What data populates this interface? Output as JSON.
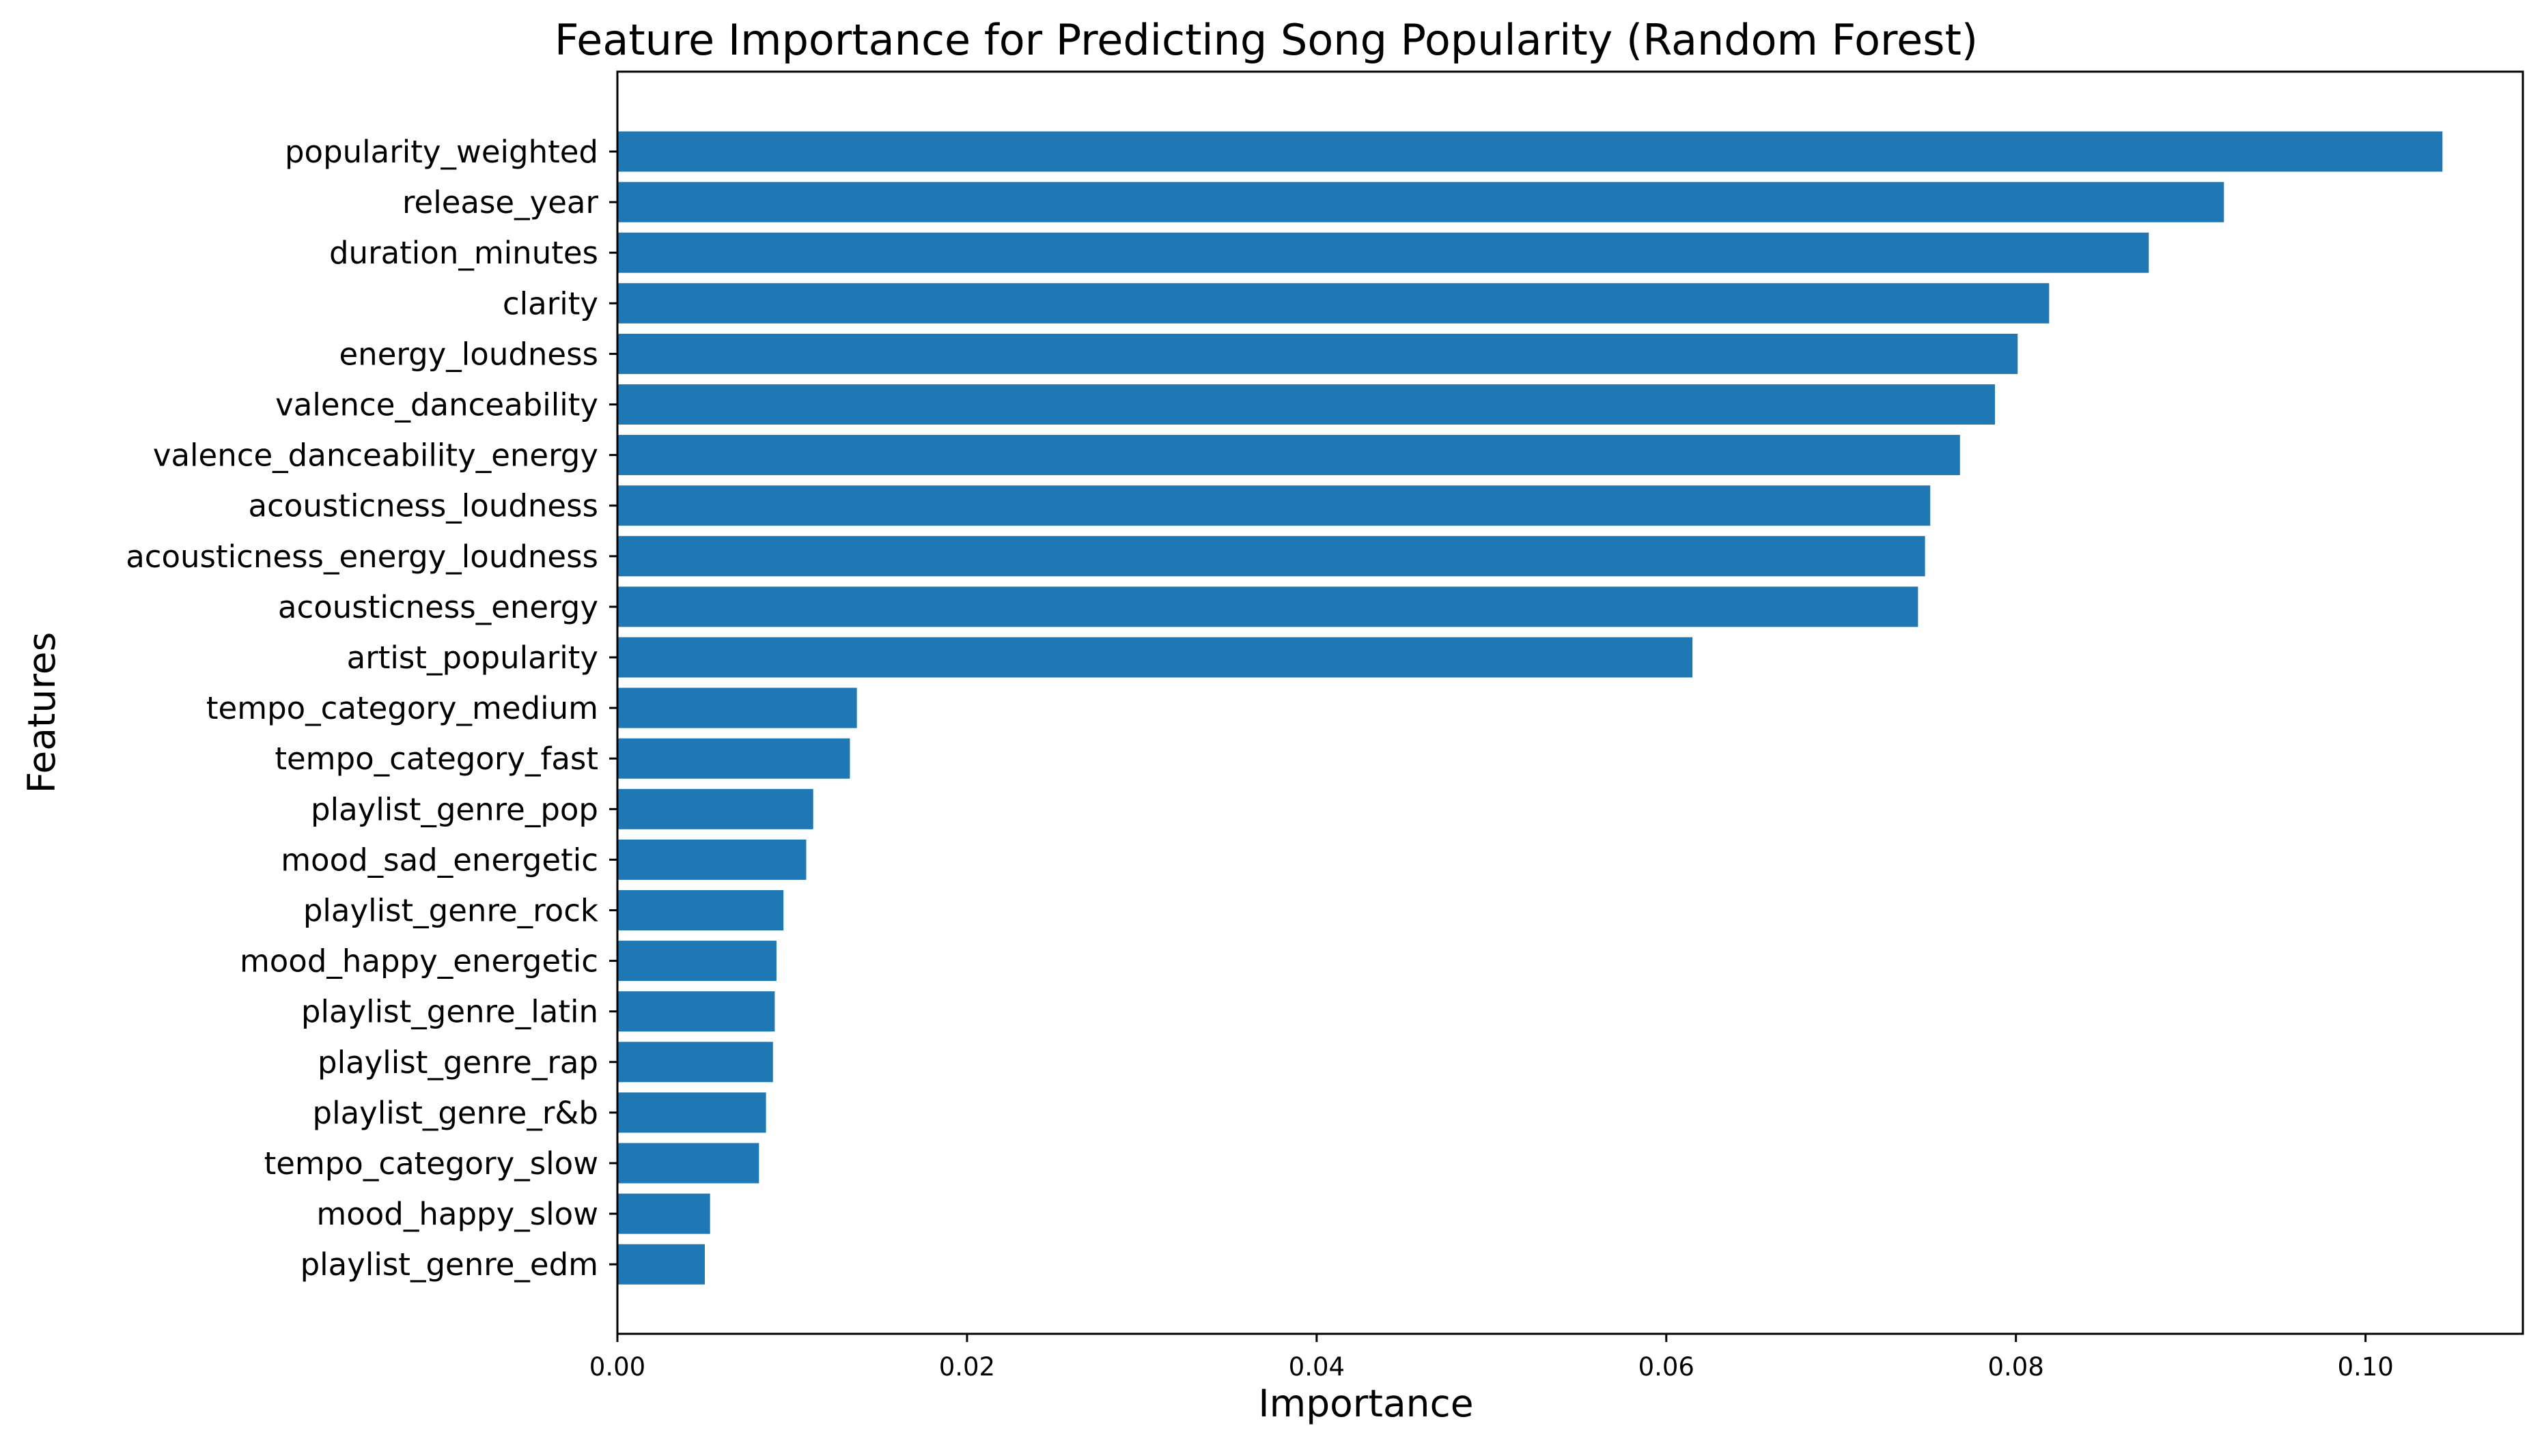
{
  "chart_data": {
    "type": "bar",
    "orientation": "horizontal",
    "title": "Feature Importance for Predicting Song Popularity (Random Forest)",
    "xlabel": "Importance",
    "ylabel": "Features",
    "xlim": [
      0,
      0.109
    ],
    "xticks": [
      0.0,
      0.02,
      0.04,
      0.06,
      0.08,
      0.1
    ],
    "xtick_labels": [
      "0.00",
      "0.02",
      "0.04",
      "0.06",
      "0.08",
      "0.10"
    ],
    "grid": false,
    "legend": "none",
    "bar_color": "#1f77b4",
    "categories": [
      "popularity_weighted",
      "release_year",
      "duration_minutes",
      "clarity",
      "energy_loudness",
      "valence_danceability",
      "valence_danceability_energy",
      "acousticness_loudness",
      "acousticness_energy_loudness",
      "acousticness_energy",
      "artist_popularity",
      "tempo_category_medium",
      "tempo_category_fast",
      "playlist_genre_pop",
      "mood_sad_energetic",
      "playlist_genre_rock",
      "mood_happy_energetic",
      "playlist_genre_latin",
      "playlist_genre_rap",
      "playlist_genre_r&b",
      "tempo_category_slow",
      "mood_happy_slow",
      "playlist_genre_edm"
    ],
    "values": [
      0.1044,
      0.0919,
      0.0876,
      0.0819,
      0.0801,
      0.0788,
      0.0768,
      0.0751,
      0.0748,
      0.0744,
      0.0615,
      0.0137,
      0.0133,
      0.0112,
      0.0108,
      0.0095,
      0.0091,
      0.009,
      0.0089,
      0.0085,
      0.0081,
      0.0053,
      0.005
    ]
  }
}
